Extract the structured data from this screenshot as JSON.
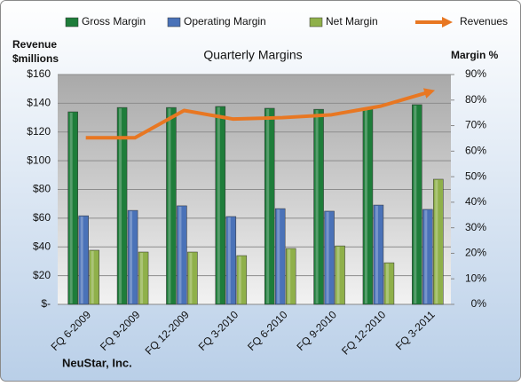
{
  "chart_data": {
    "type": "bar",
    "title": "Quarterly Margins",
    "ylabel": [
      "Revenue",
      "$millions"
    ],
    "y2label": "Margin %",
    "source": "NeuStar, Inc.",
    "categories": [
      "FQ 6-2009",
      "FQ 9-2009",
      "FQ 12-2009",
      "FQ 3-2010",
      "FQ 6-2010",
      "FQ 9-2010",
      "FQ 12-2010",
      "FQ 3-2011"
    ],
    "series": [
      {
        "name": "Gross Margin",
        "color": "#1e7d3a",
        "axis": "y2",
        "values": [
          75.4,
          77.1,
          77.1,
          77.5,
          76.8,
          76.4,
          76.8,
          78.2
        ]
      },
      {
        "name": "Operating Margin",
        "color": "#4a72b8",
        "axis": "y2",
        "values": [
          34.7,
          36.8,
          38.6,
          34.4,
          37.5,
          36.5,
          38.9,
          37.2
        ]
      },
      {
        "name": "Net Margin",
        "color": "#8fb04a",
        "axis": "y2",
        "values": [
          21.2,
          20.5,
          20.5,
          19.1,
          21.9,
          22.9,
          16.3,
          49.0
        ]
      },
      {
        "name": "Revenues",
        "color": "#e87722",
        "type": "line",
        "values": [
          116,
          116,
          135,
          129,
          130,
          132,
          138,
          148
        ]
      }
    ],
    "ylim": [
      0,
      160
    ],
    "yticks": [
      {
        "value": 0,
        "label": "$-"
      },
      {
        "value": 20,
        "label": "$20"
      },
      {
        "value": 40,
        "label": "$40"
      },
      {
        "value": 60,
        "label": "$60"
      },
      {
        "value": 80,
        "label": "$80"
      },
      {
        "value": 100,
        "label": "$100"
      },
      {
        "value": 120,
        "label": "$120"
      },
      {
        "value": 140,
        "label": "$140"
      },
      {
        "value": 160,
        "label": "$160"
      }
    ],
    "y2lim": [
      0,
      90
    ],
    "y2ticks": [
      {
        "value": 0,
        "label": "0%"
      },
      {
        "value": 10,
        "label": "10%"
      },
      {
        "value": 20,
        "label": "20%"
      },
      {
        "value": 30,
        "label": "30%"
      },
      {
        "value": 40,
        "label": "40%"
      },
      {
        "value": 50,
        "label": "50%"
      },
      {
        "value": 60,
        "label": "60%"
      },
      {
        "value": 70,
        "label": "70%"
      },
      {
        "value": 80,
        "label": "80%"
      },
      {
        "value": 90,
        "label": "90%"
      }
    ],
    "grid": true
  }
}
